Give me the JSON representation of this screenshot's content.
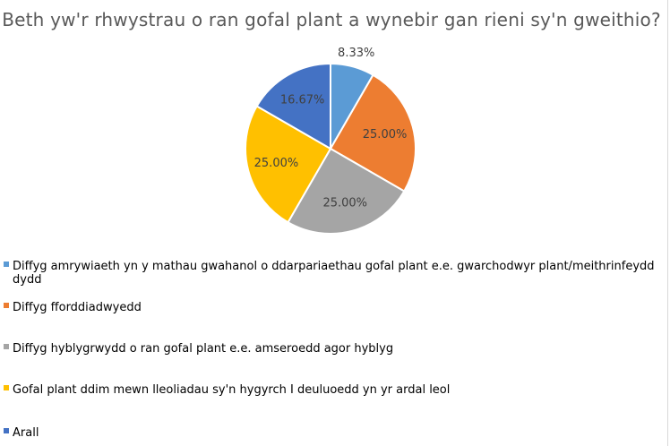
{
  "chart_data": {
    "type": "pie",
    "title": "Beth yw'r rhwystrau o ran gofal plant a wynebir gan rieni sy'n gweithio?",
    "categories": [
      "Diffyg amrywiaeth yn y mathau gwahanol o ddarpariaethau gofal plant e.e. gwarchodwyr plant/meithrinfeydd dydd",
      "Diffyg fforddiadwyedd",
      "Diffyg hyblygrwydd o ran gofal plant e.e. amseroedd agor hyblyg",
      "Gofal plant ddim mewn lleoliadau sy'n hygyrch I deuluoedd yn yr ardal leol",
      "Arall"
    ],
    "values": [
      8.33,
      25.0,
      25.0,
      25.0,
      16.67
    ],
    "data_labels": [
      "8.33%",
      "25.00%",
      "25.00%",
      "25.00%",
      "16.67%"
    ],
    "colors": [
      "#5b9bd5",
      "#ed7d31",
      "#a5a5a5",
      "#ffc000",
      "#4472c4"
    ],
    "legend_position": "bottom-left"
  }
}
